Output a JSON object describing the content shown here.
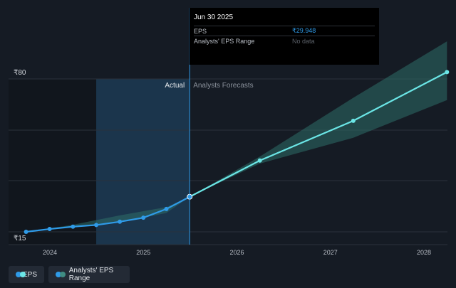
{
  "chart_data": {
    "type": "line",
    "y_axis": {
      "top_label": "₹80",
      "bottom_label": "₹15",
      "ylim": [
        15,
        80
      ]
    },
    "x_tick_labels": [
      "2024",
      "2025",
      "2026",
      "2027",
      "2028"
    ],
    "region_labels": {
      "actual": "Actual",
      "forecast": "Analysts Forecasts"
    },
    "series": [
      {
        "name": "EPS",
        "type": "actual",
        "x": [
          "2023-09-30",
          "2023-12-31",
          "2024-03-31",
          "2024-06-30",
          "2024-09-30",
          "2024-12-31",
          "2025-03-31",
          "2025-06-30"
        ],
        "values": [
          15.0,
          16.2,
          17.2,
          17.9,
          19.3,
          21.0,
          24.7,
          29.9
        ]
      },
      {
        "name": "EPS",
        "type": "forecast",
        "x": [
          "2025-06-30",
          "2026-03-31",
          "2027-03-31",
          "2028-03-31"
        ],
        "values": [
          29.9,
          45.3,
          62.2,
          82.9
        ]
      },
      {
        "name": "Analysts' EPS Range",
        "type": "range",
        "x": [
          "2023-09-30",
          "2024-03-31",
          "2024-09-30",
          "2025-03-31",
          "2025-06-30",
          "2026-03-31",
          "2027-03-31",
          "2028-03-31"
        ],
        "low": [
          15.0,
          17.0,
          19.0,
          23.0,
          29.9,
          44.0,
          55.0,
          71.0
        ],
        "high": [
          15.0,
          18.0,
          22.0,
          25.5,
          29.9,
          47.0,
          72.0,
          96.0
        ]
      }
    ],
    "grid": true
  },
  "tooltip": {
    "date": "Jun 30 2025",
    "rows": [
      {
        "key": "EPS",
        "value": "₹29.948"
      },
      {
        "key": "Analysts' EPS Range",
        "value": "No data"
      }
    ]
  },
  "legend": [
    {
      "label": "EPS",
      "color_a": "#2f9be8",
      "color_b": "#6be6e6"
    },
    {
      "label": "Analysts' EPS Range",
      "color_a": "#2f9be8",
      "color_b": "#3f8c82"
    }
  ],
  "colors": {
    "background": "#151b24",
    "actual_line": "#2f9be8",
    "forecast_line": "#6be6e6",
    "range_fill": "#2e6e68",
    "highlight": "#1d3b55"
  }
}
